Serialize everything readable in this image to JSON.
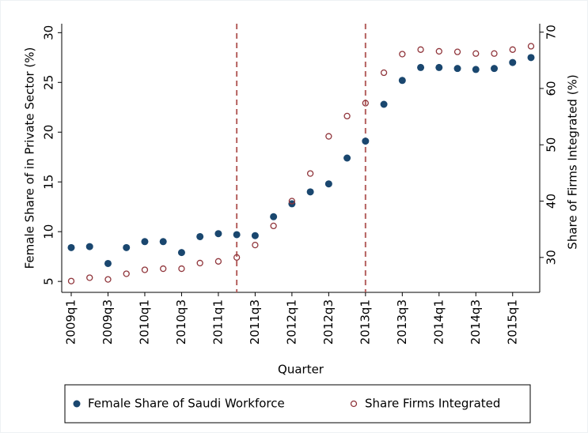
{
  "chart_data": {
    "type": "scatter",
    "categories": [
      "2009q1",
      null,
      "2009q3",
      null,
      "2010q1",
      null,
      "2010q3",
      null,
      "2011q1",
      null,
      "2011q3",
      null,
      "2012q1",
      null,
      "2012q3",
      null,
      "2013q1",
      null,
      "2013q3",
      null,
      "2014q1",
      null,
      "2014q3",
      null,
      "2015q1",
      null
    ],
    "x_label": "Quarter",
    "y_label": "Female Share of in Private Sector (%)",
    "y2_label": "Share of Firms Integrated (%)",
    "ylim": [
      3.9,
      30.9
    ],
    "yticks": [
      5,
      10,
      15,
      20,
      25,
      30
    ],
    "y2lim": [
      23.8,
      71.5
    ],
    "y2ticks": [
      30,
      40,
      50,
      60,
      70
    ],
    "vlines_at": [
      9,
      16
    ],
    "series": [
      {
        "name": "Female Share of Saudi Workforce",
        "color": "#1a476f",
        "marker": "filled",
        "values": [
          8.4,
          8.5,
          6.8,
          8.4,
          9.0,
          9.0,
          7.9,
          9.5,
          9.8,
          9.7,
          9.6,
          11.5,
          12.8,
          14.0,
          14.8,
          17.4,
          19.1,
          22.8,
          25.2,
          26.5,
          26.5,
          26.4,
          26.3,
          26.4,
          27.0,
          27.5
        ]
      },
      {
        "name": "Share Firms Integrated",
        "color": "#90353b",
        "marker": "hollow",
        "axis": "y2",
        "values": [
          25.8,
          26.4,
          26.1,
          27.1,
          27.8,
          28.0,
          28.0,
          29.0,
          29.3,
          30.0,
          32.2,
          35.6,
          40.0,
          44.9,
          51.5,
          55.1,
          57.4,
          62.8,
          66.1,
          66.9,
          66.6,
          66.5,
          66.2,
          66.2,
          66.9,
          67.5
        ]
      }
    ]
  }
}
